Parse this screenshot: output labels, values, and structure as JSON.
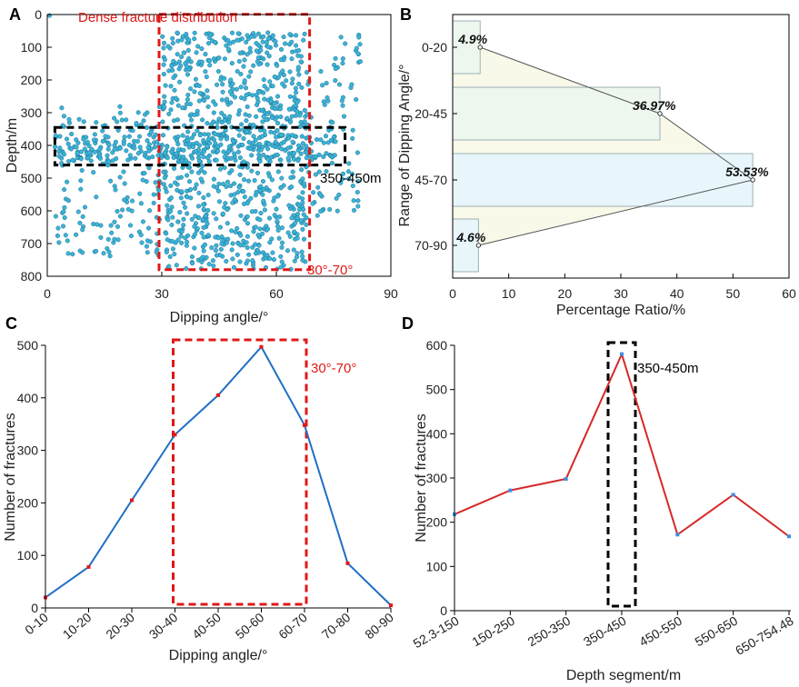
{
  "chart_data": [
    {
      "panel": "A",
      "type": "scatter",
      "xlabel": "Dipping angle/°",
      "ylabel": "Depth/m",
      "xlim": [
        0,
        90
      ],
      "ylim": [
        800,
        0
      ],
      "xticks": [
        0,
        30,
        60,
        90
      ],
      "yticks": [
        0,
        100,
        200,
        300,
        400,
        500,
        600,
        700,
        800
      ],
      "marker_color": "#3cb4d8",
      "annotations": {
        "dense_title": "Dense fracture distribution",
        "angle_range": "30°-70°",
        "depth_range": "350-450m"
      },
      "dense_angle_range": [
        30,
        68
      ],
      "dense_depth_range": [
        55,
        780
      ],
      "depth_box_range": [
        345,
        460
      ],
      "depth_box_angle_range": [
        2,
        78
      ]
    },
    {
      "panel": "B",
      "type": "bar",
      "orientation": "horizontal",
      "categories": [
        "0-20",
        "20-45",
        "45-70",
        "70-90"
      ],
      "values": [
        4.9,
        36.97,
        53.53,
        4.6
      ],
      "value_labels": [
        "4.9%",
        "36.97%",
        "53.53%",
        "4.6%"
      ],
      "xlabel": "Percentage Ratio/%",
      "ylabel": "Range of Dipping Angle/°",
      "xlim": [
        0,
        60
      ],
      "xticks": [
        0,
        10,
        20,
        30,
        40,
        50,
        60
      ]
    },
    {
      "panel": "C",
      "type": "line",
      "categories": [
        "0-10",
        "10-20",
        "20-30",
        "30-40",
        "40-50",
        "50-60",
        "60-70",
        "70-80",
        "80-90"
      ],
      "values": [
        20,
        78,
        205,
        330,
        405,
        497,
        348,
        85,
        5
      ],
      "xlabel": "Dipping angle/°",
      "ylabel": "Number of fractures",
      "ylim": [
        0,
        500
      ],
      "yticks": [
        0,
        100,
        200,
        300,
        400,
        500
      ],
      "line_color": "#1f6fc4",
      "marker_color": "#e01818",
      "annotation": "30°-70°",
      "highlight_categories": [
        "30-40",
        "60-70"
      ]
    },
    {
      "panel": "D",
      "type": "line",
      "categories": [
        "52.3-150",
        "150-250",
        "250-350",
        "350-450",
        "450-550",
        "550-650",
        "650-754.48"
      ],
      "values": [
        218,
        272,
        298,
        580,
        172,
        262,
        168
      ],
      "xlabel": "Depth segment/m",
      "ylabel": "Number of fractures",
      "ylim": [
        0,
        600
      ],
      "yticks": [
        0,
        100,
        200,
        300,
        400,
        500,
        600
      ],
      "line_color": "#d62828",
      "marker_color": "#3a8ee6",
      "annotation": "350-450m",
      "highlight_category": "350-450"
    }
  ]
}
